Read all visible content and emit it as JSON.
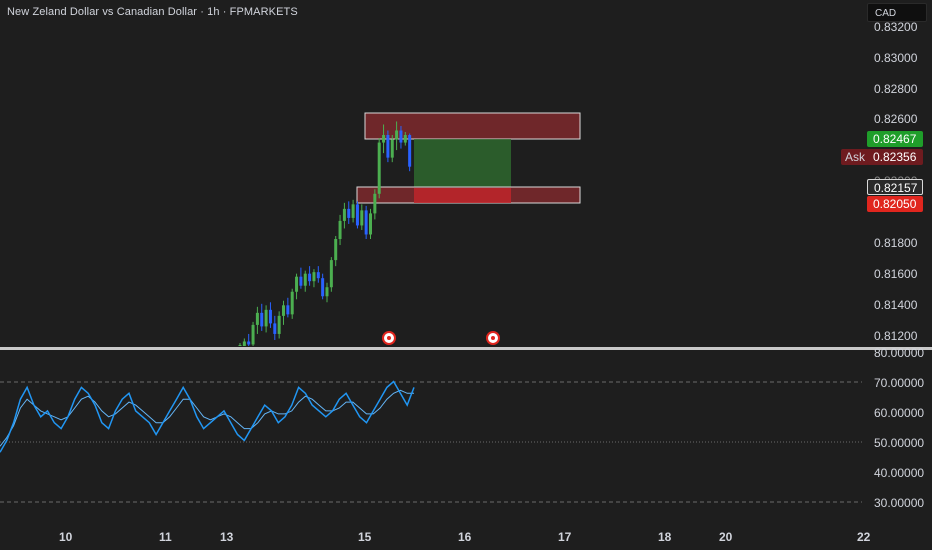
{
  "header": {
    "title": "New Zeland Dollar vs Canadian Dollar · 1h · FPMARKETS",
    "currency": "CAD"
  },
  "price_axis": {
    "labels": [
      "0.83200",
      "0.83000",
      "0.82800",
      "0.82600",
      "0.82400",
      "0.82200",
      "0.82000",
      "0.81800",
      "0.81600",
      "0.81400",
      "0.81200"
    ]
  },
  "price_tags": {
    "take_profit": "0.82467",
    "ask": "0.82356",
    "ask_label": "Ask",
    "entry": "0.82157",
    "stop_loss": "0.82050"
  },
  "rsi_axis": {
    "labels": [
      "80.00000",
      "70.00000",
      "60.00000",
      "50.00000",
      "40.00000",
      "30.00000"
    ]
  },
  "time_axis": {
    "labels": [
      "10",
      "11",
      "13",
      "15",
      "16",
      "17",
      "18",
      "20",
      "22"
    ]
  },
  "colors": {
    "background": "#1e1e1e",
    "bull": "#4caf50",
    "bear": "#2962ff",
    "rsi_line": "#2196f3",
    "rsi_signal": "#64b5f6",
    "zone_red": "#8b2b2f",
    "zone_green": "#2e6b2e",
    "tag_green": "#1f9e2a",
    "tag_red": "#e0261e",
    "tag_ask": "#6e1b1f"
  },
  "chart_data": [
    {
      "type": "candlestick",
      "symbol": "NZDCAD",
      "interval": "1h",
      "ylim": [
        0.811,
        0.8325
      ],
      "candles": [
        {
          "o": 0.8108,
          "h": 0.8112,
          "l": 0.8104,
          "c": 0.811
        },
        {
          "o": 0.811,
          "h": 0.8115,
          "l": 0.8106,
          "c": 0.8113
        },
        {
          "o": 0.8113,
          "h": 0.8118,
          "l": 0.8109,
          "c": 0.8111
        },
        {
          "o": 0.8111,
          "h": 0.8126,
          "l": 0.8108,
          "c": 0.8124
        },
        {
          "o": 0.8124,
          "h": 0.8136,
          "l": 0.8118,
          "c": 0.8132
        },
        {
          "o": 0.8132,
          "h": 0.8138,
          "l": 0.812,
          "c": 0.8123
        },
        {
          "o": 0.8123,
          "h": 0.8137,
          "l": 0.8119,
          "c": 0.8134
        },
        {
          "o": 0.8134,
          "h": 0.8139,
          "l": 0.8122,
          "c": 0.8125
        },
        {
          "o": 0.8125,
          "h": 0.813,
          "l": 0.8114,
          "c": 0.8118
        },
        {
          "o": 0.8118,
          "h": 0.8133,
          "l": 0.8115,
          "c": 0.813
        },
        {
          "o": 0.813,
          "h": 0.814,
          "l": 0.8124,
          "c": 0.8137
        },
        {
          "o": 0.8137,
          "h": 0.8142,
          "l": 0.8129,
          "c": 0.8131
        },
        {
          "o": 0.8131,
          "h": 0.8148,
          "l": 0.8128,
          "c": 0.8146
        },
        {
          "o": 0.8146,
          "h": 0.8158,
          "l": 0.8141,
          "c": 0.8156
        },
        {
          "o": 0.8156,
          "h": 0.8162,
          "l": 0.8148,
          "c": 0.815
        },
        {
          "o": 0.815,
          "h": 0.816,
          "l": 0.8146,
          "c": 0.8158
        },
        {
          "o": 0.8158,
          "h": 0.8163,
          "l": 0.815,
          "c": 0.8153
        },
        {
          "o": 0.8153,
          "h": 0.8161,
          "l": 0.8149,
          "c": 0.8159
        },
        {
          "o": 0.8159,
          "h": 0.8163,
          "l": 0.8152,
          "c": 0.8155
        },
        {
          "o": 0.8155,
          "h": 0.8158,
          "l": 0.8141,
          "c": 0.8143
        },
        {
          "o": 0.8143,
          "h": 0.8152,
          "l": 0.8139,
          "c": 0.8149
        },
        {
          "o": 0.8149,
          "h": 0.8169,
          "l": 0.8146,
          "c": 0.8167
        },
        {
          "o": 0.8167,
          "h": 0.8183,
          "l": 0.8163,
          "c": 0.8181
        },
        {
          "o": 0.8181,
          "h": 0.8197,
          "l": 0.8177,
          "c": 0.8193
        },
        {
          "o": 0.8193,
          "h": 0.8205,
          "l": 0.8188,
          "c": 0.8201
        },
        {
          "o": 0.8201,
          "h": 0.8206,
          "l": 0.8191,
          "c": 0.8195
        },
        {
          "o": 0.8195,
          "h": 0.8207,
          "l": 0.8192,
          "c": 0.8204
        },
        {
          "o": 0.8204,
          "h": 0.8206,
          "l": 0.8188,
          "c": 0.819
        },
        {
          "o": 0.819,
          "h": 0.8204,
          "l": 0.8187,
          "c": 0.82
        },
        {
          "o": 0.82,
          "h": 0.8203,
          "l": 0.8181,
          "c": 0.8184
        },
        {
          "o": 0.8184,
          "h": 0.8201,
          "l": 0.8181,
          "c": 0.8198
        },
        {
          "o": 0.8198,
          "h": 0.8214,
          "l": 0.8194,
          "c": 0.8211
        },
        {
          "o": 0.8211,
          "h": 0.8248,
          "l": 0.8208,
          "c": 0.8245
        },
        {
          "o": 0.8245,
          "h": 0.8257,
          "l": 0.8238,
          "c": 0.825
        },
        {
          "o": 0.825,
          "h": 0.8253,
          "l": 0.8232,
          "c": 0.8235
        },
        {
          "o": 0.8235,
          "h": 0.825,
          "l": 0.8232,
          "c": 0.8247
        },
        {
          "o": 0.8247,
          "h": 0.8259,
          "l": 0.824,
          "c": 0.8253
        },
        {
          "o": 0.8253,
          "h": 0.8256,
          "l": 0.8241,
          "c": 0.8245
        },
        {
          "o": 0.8245,
          "h": 0.8252,
          "l": 0.8243,
          "c": 0.825
        },
        {
          "o": 0.825,
          "h": 0.8251,
          "l": 0.8226,
          "c": 0.8229
        }
      ]
    },
    {
      "type": "line",
      "name": "RSI",
      "ylim": [
        25,
        82
      ],
      "reference_lines": [
        70,
        50,
        30
      ],
      "series": [
        {
          "values": [
            48,
            52,
            58,
            66,
            70,
            64,
            60,
            62,
            58,
            56,
            60,
            66,
            70,
            68,
            64,
            58,
            56,
            62,
            66,
            68,
            62,
            60,
            58,
            54,
            58,
            62,
            66,
            70,
            66,
            60,
            56,
            58,
            60,
            62,
            58,
            54,
            52,
            56,
            60,
            64,
            62,
            58,
            60,
            64,
            70,
            68,
            64,
            62,
            60,
            62,
            66,
            68,
            64,
            60,
            58,
            62,
            66,
            70,
            72,
            68,
            64,
            70
          ]
        },
        {
          "values": [
            50,
            53,
            57,
            63,
            66,
            64,
            62,
            61,
            60,
            59,
            60,
            63,
            66,
            67,
            65,
            62,
            60,
            61,
            63,
            65,
            64,
            62,
            60,
            58,
            58,
            60,
            63,
            66,
            66,
            63,
            60,
            59,
            60,
            61,
            60,
            58,
            56,
            56,
            58,
            61,
            62,
            61,
            61,
            62,
            65,
            67,
            66,
            64,
            62,
            62,
            63,
            65,
            65,
            63,
            61,
            61,
            63,
            66,
            68,
            69,
            68,
            68
          ]
        }
      ]
    }
  ]
}
